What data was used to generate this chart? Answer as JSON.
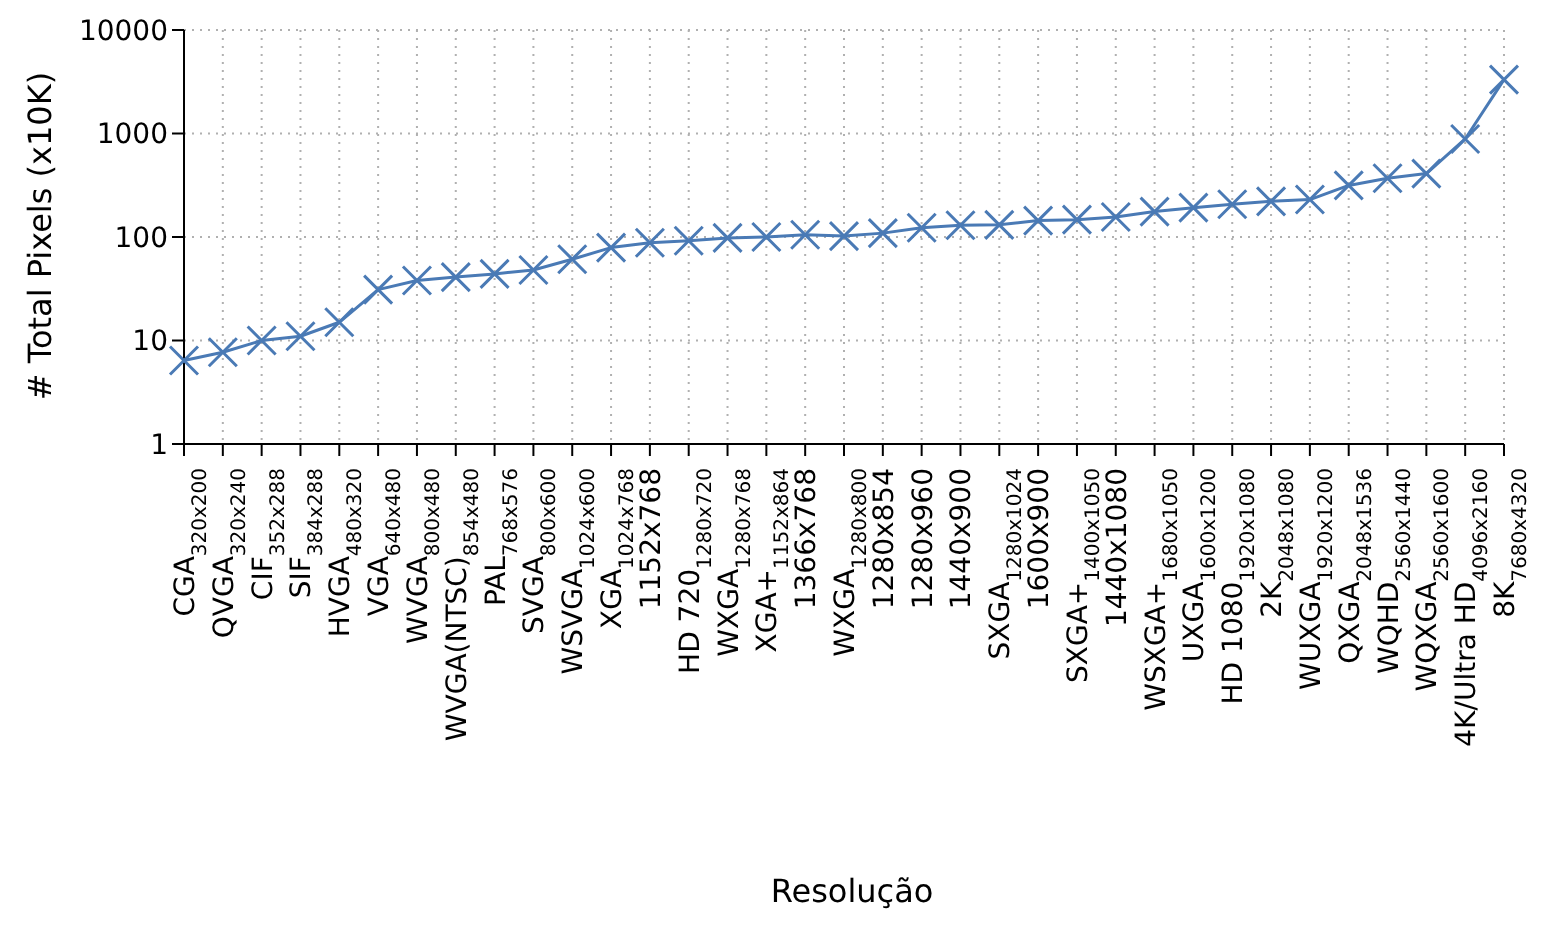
{
  "chart_data": {
    "type": "line",
    "xlabel": "Resolução",
    "ylabel": "# Total Pixels (x10K)",
    "categories": [
      "CGA$_{320x200}$",
      "QVGA$_{320x240}$",
      "CIF$_{352x288}$",
      "SIF$_{384x288}$",
      "HVGA$_{480x320}$",
      "VGA$_{640x480}$",
      "WVGA$_{800x480}$",
      "WVGA(NTSC)$_{854x480}$",
      "PAL$_{768x576}$",
      "SVGA$_{800x600}$",
      "WSVGA$_{1024x600}$",
      "XGA$_{1024x768}$",
      "1152x768",
      "HD 720$_{1280x720}$",
      "WXGA$_{1280x768}$",
      "XGA+$_{1152x864}$",
      "1366x768",
      "WXGA$_{1280x800}$",
      "1280x854",
      "1280x960",
      "1440x900",
      "SXGA$_{1280x1024}$",
      "1600x900",
      "SXGA+$_{1400x1050}$",
      "1440x1080",
      "WSXGA+$_{1680x1050}$",
      "UXGA$_{1600x1200}$",
      "HD 1080$_{1920x1080}$",
      "2K$_{2048x1080}$",
      "WUXGA$_{1920x1200}$",
      "QXGA$_{2048x1536}$",
      "WQHD$_{2560x1440}$",
      "WQXGA$_{2560x1600}$",
      "4K/Ultra HD$_{4096x2160}$",
      "8K$_{7680x4320}$"
    ],
    "series": [
      {
        "color": "#4a7ab5",
        "values": [
          6.4,
          7.7,
          10,
          11,
          15,
          31,
          38,
          41,
          44,
          48,
          61,
          79,
          88,
          92,
          98,
          100,
          105,
          102,
          109,
          123,
          130,
          131,
          144,
          147,
          156,
          176,
          192,
          207,
          221,
          230,
          315,
          369,
          410,
          885,
          3318
        ]
      }
    ],
    "ylim": [
      1,
      10000
    ],
    "yticks": [
      1,
      10,
      100,
      1000,
      10000
    ],
    "log": true,
    "grid": true,
    "legend": false,
    "marker": "cross",
    "line_style": "solid"
  }
}
